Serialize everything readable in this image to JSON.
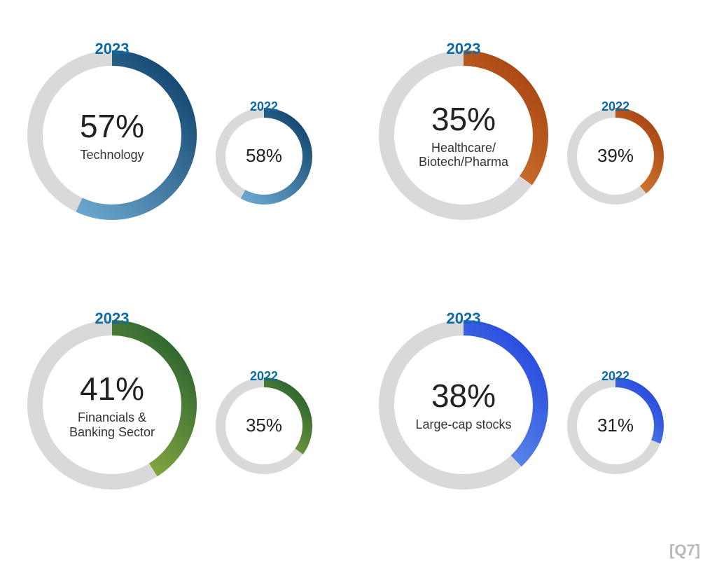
{
  "footer_tag": "[Q7]",
  "year_label_color": "#0d6aa8",
  "year_label_fontsize_big_pt": 18,
  "year_label_fontsize_small_pt": 16,
  "track_color": "#d9d9d9",
  "bg_color": "#ffffff",
  "text_color": "#222222",
  "stroke_width_big": 22,
  "stroke_width_small": 14,
  "big_radius": 110,
  "small_radius": 65,
  "panels": [
    {
      "category": "Technology",
      "big": {
        "year": "2023",
        "value": 57,
        "color_start": "#7ab8e0",
        "color_end": "#0b3d66"
      },
      "small": {
        "year": "2022",
        "value": 58,
        "color_start": "#7ab8e0",
        "color_end": "#0b3d66"
      }
    },
    {
      "category": "Healthcare/\nBiotech/Pharma",
      "big": {
        "year": "2023",
        "value": 35,
        "color_start": "#f2a24a",
        "color_end": "#a23e0e"
      },
      "small": {
        "year": "2022",
        "value": 39,
        "color_start": "#f2a24a",
        "color_end": "#a23e0e"
      }
    },
    {
      "category": "Financials &\nBanking Sector",
      "big": {
        "year": "2023",
        "value": 41,
        "color_start": "#c5da4a",
        "color_end": "#1f5a2e"
      },
      "small": {
        "year": "2022",
        "value": 35,
        "color_start": "#c5da4a",
        "color_end": "#1f5a2e"
      }
    },
    {
      "category": "Large-cap stocks",
      "big": {
        "year": "2023",
        "value": 38,
        "color_start": "#8fc5f2",
        "color_end": "#1d3edb"
      },
      "small": {
        "year": "2022",
        "value": 31,
        "color_start": "#8fc5f2",
        "color_end": "#1d3edb"
      }
    }
  ]
}
